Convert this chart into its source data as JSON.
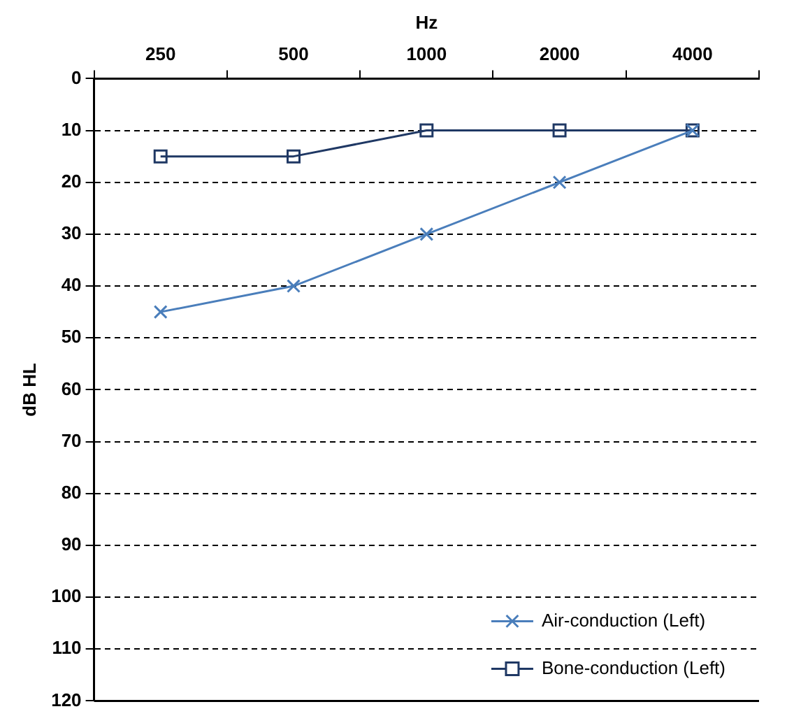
{
  "chart_data": {
    "type": "line",
    "xlabel": "Hz",
    "ylabel": "dB HL",
    "categories": [
      "250",
      "500",
      "1000",
      "2000",
      "4000"
    ],
    "series": [
      {
        "name": "Air-conduction (Left)",
        "color": "#4a7ebb",
        "values": [
          45,
          40,
          30,
          20,
          10
        ],
        "marker": "cross"
      },
      {
        "name": "Bone-conduction (Left)",
        "color": "#1f3864",
        "values": [
          15,
          15,
          10,
          10,
          10
        ],
        "marker": "square"
      }
    ],
    "ylim": [
      120,
      0
    ],
    "yticks": [
      0,
      10,
      20,
      30,
      40,
      50,
      60,
      70,
      80,
      90,
      100,
      110,
      120
    ],
    "grid": "y",
    "legend": "bottom right",
    "line_style": "solid"
  }
}
